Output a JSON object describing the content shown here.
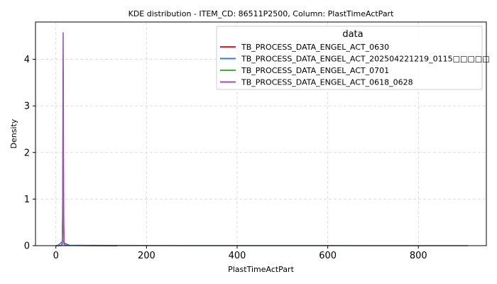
{
  "chart_data": {
    "type": "line",
    "title": "KDE distribution - ITEM_CD: 86511P2500, Column: PlastTimeActPart",
    "xlabel": "PlastTimeActPart",
    "ylabel": "Density",
    "xlim": [
      -45,
      950
    ],
    "ylim": [
      0,
      4.8
    ],
    "xticks": [
      0,
      200,
      400,
      600,
      800
    ],
    "yticks": [
      0,
      1,
      2,
      3,
      4
    ],
    "grid": true,
    "legend": {
      "title": "data",
      "position": "top-right"
    },
    "series": [
      {
        "name": "TB_PROCESS_DATA_ENGEL_ACT_0630",
        "color": "#e3201b",
        "x": [
          0,
          12,
          14,
          15,
          15.6,
          16,
          16.4,
          17,
          18,
          20,
          30,
          135
        ],
        "y": [
          0,
          0.003,
          0.05,
          0.6,
          2.2,
          3.8,
          2.2,
          0.6,
          0.05,
          0.01,
          0.004,
          0
        ]
      },
      {
        "name": "TB_PROCESS_DATA_ENGEL_ACT_202504221219_0115□□□□□",
        "color": "#3a7ac8",
        "x": [
          0,
          5,
          10,
          15,
          17,
          20,
          30,
          100,
          300,
          600,
          910
        ],
        "y": [
          0,
          0.01,
          0.05,
          0.1,
          0.1,
          0.05,
          0.01,
          0.005,
          0.002,
          0.001,
          0
        ]
      },
      {
        "name": "TB_PROCESS_DATA_ENGEL_ACT_0701",
        "color": "#3fae3a",
        "x": [
          0,
          12,
          14,
          15,
          15.6,
          16,
          16.4,
          17,
          18,
          20,
          30,
          135
        ],
        "y": [
          0,
          0.003,
          0.05,
          0.4,
          1.0,
          1.3,
          1.0,
          0.4,
          0.05,
          0.01,
          0.004,
          0
        ]
      },
      {
        "name": "TB_PROCESS_DATA_ENGEL_ACT_0618_0628",
        "color": "#9a4fb3",
        "x": [
          0,
          12,
          14,
          15,
          15.6,
          16,
          16.4,
          17,
          18,
          20,
          30,
          135
        ],
        "y": [
          0,
          0.003,
          0.05,
          1.0,
          3.5,
          4.58,
          3.5,
          1.0,
          0.05,
          0.01,
          0.004,
          0
        ]
      }
    ]
  }
}
